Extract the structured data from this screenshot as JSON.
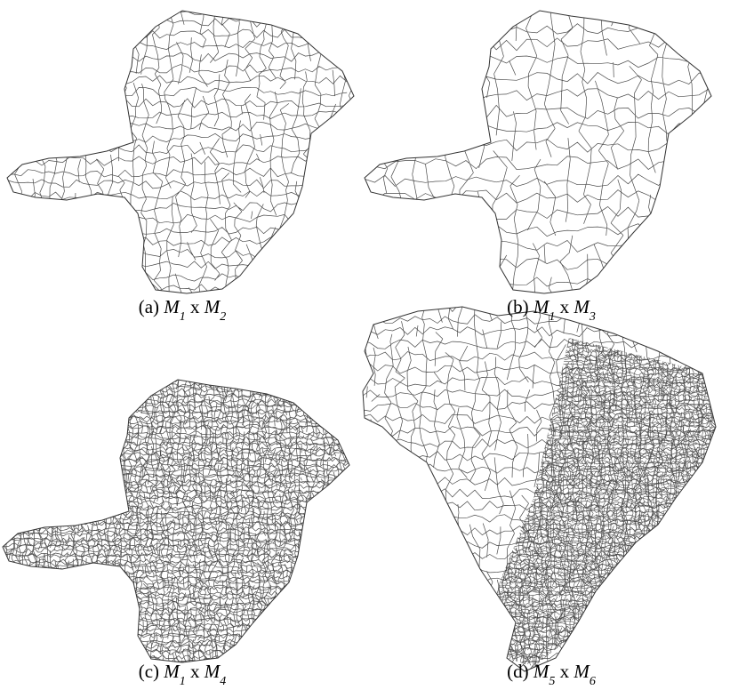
{
  "panels": [
    {
      "caption": {
        "label": "(a)",
        "m1": "M",
        "s1": "1",
        "op": "x",
        "m2": "M",
        "s2": "2"
      }
    },
    {
      "caption": {
        "label": "(b)",
        "m1": "M",
        "s1": "1",
        "op": "x",
        "m2": "M",
        "s2": "3"
      }
    },
    {
      "caption": {
        "label": "(c)",
        "m1": "M",
        "s1": "1",
        "op": "x",
        "m2": "M",
        "s2": "4"
      }
    },
    {
      "caption": {
        "label": "(d)",
        "m1": "M",
        "s1": "5",
        "op": "x",
        "m2": "M",
        "s2": "6"
      }
    }
  ]
}
